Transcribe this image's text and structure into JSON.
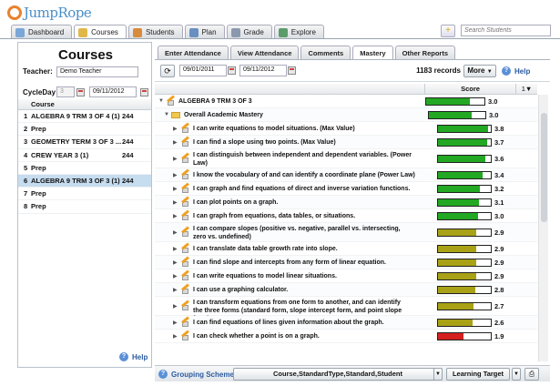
{
  "app": {
    "logo": "JumpRope"
  },
  "topnav": [
    {
      "label": "Dashboard",
      "color": "#7aa7d8"
    },
    {
      "label": "Courses",
      "color": "#e0b84a",
      "active": true
    },
    {
      "label": "Students",
      "color": "#d88b3c"
    },
    {
      "label": "Plan",
      "color": "#6a8fc0"
    },
    {
      "label": "Grade",
      "color": "#8a9aae"
    },
    {
      "label": "Explore",
      "color": "#5b9c6b"
    }
  ],
  "search": {
    "placeholder": "Search Students"
  },
  "left": {
    "title": "Courses",
    "teacher_label": "Teacher:",
    "teacher_value": "Demo Teacher",
    "cycleday_label": "CycleDay",
    "cycleday_value": "3",
    "date_value": "09/11/2012",
    "course_header": "Course",
    "courses": [
      {
        "num": "1",
        "name": "ALGEBRA 9 TRM 3 OF 4 (1)",
        "count": "244"
      },
      {
        "num": "2",
        "name": "Prep",
        "count": ""
      },
      {
        "num": "3",
        "name": "GEOMETRY TERM 3 OF 3 ...",
        "count": "244"
      },
      {
        "num": "4",
        "name": "CREW YEAR 3 (1)",
        "count": "244"
      },
      {
        "num": "5",
        "name": "Prep",
        "count": ""
      },
      {
        "num": "6",
        "name": "ALGEBRA 9 TRM 3 OF 3 (1)",
        "count": "244",
        "selected": true
      },
      {
        "num": "7",
        "name": "Prep",
        "count": ""
      },
      {
        "num": "8",
        "name": "Prep",
        "count": ""
      }
    ],
    "help_label": "Help"
  },
  "right": {
    "tabs": [
      "Enter Attendance",
      "View Attendance",
      "Comments",
      "Mastery",
      "Other Reports"
    ],
    "active_tab": "Mastery",
    "date_from": "09/01/2011",
    "date_to": "09/11/2012",
    "records": "1183 records",
    "more_label": "More",
    "help_label": "Help",
    "score_header": "Score",
    "sort_indicator": "1▼",
    "rows": [
      {
        "kind": "course",
        "text": "ALGEBRA 9 TRM 3 OF 3",
        "score": "3.0",
        "value": 3.0,
        "color": "#22a822"
      },
      {
        "kind": "group",
        "text": "Overall Academic Mastery",
        "score": "3.0",
        "value": 3.0,
        "color": "#22a822"
      },
      {
        "kind": "std",
        "text": "I can write equations to model situations. (Max Value)",
        "score": "3.8",
        "value": 3.8,
        "color": "#22a822"
      },
      {
        "kind": "std",
        "text": "I can find a slope using two points. (Max Value)",
        "score": "3.7",
        "value": 3.7,
        "color": "#22a822"
      },
      {
        "kind": "std2",
        "text": "I can distinguish between independent and dependent variables. (Power Law)",
        "score": "3.6",
        "value": 3.6,
        "color": "#22a822"
      },
      {
        "kind": "std",
        "text": "I know the vocabulary of and can identify a coordinate plane (Power Law)",
        "score": "3.4",
        "value": 3.4,
        "color": "#22a822"
      },
      {
        "kind": "std",
        "text": "I can graph and find equations of direct and inverse variation functions.",
        "score": "3.2",
        "value": 3.2,
        "color": "#22a822"
      },
      {
        "kind": "std",
        "text": "I can plot points on a graph.",
        "score": "3.1",
        "value": 3.1,
        "color": "#22a822"
      },
      {
        "kind": "std",
        "text": "I can graph from equations, data tables, or situations.",
        "score": "3.0",
        "value": 3.0,
        "color": "#22a822"
      },
      {
        "kind": "std2",
        "text": "I can compare slopes (positive vs.  negative, parallel vs.  intersecting, zero vs. undefined)",
        "score": "2.9",
        "value": 2.9,
        "color": "#a9a116"
      },
      {
        "kind": "std",
        "text": "I can translate data table growth rate into slope.",
        "score": "2.9",
        "value": 2.9,
        "color": "#a9a116"
      },
      {
        "kind": "std",
        "text": "I can find slope and intercepts from any form of linear equation.",
        "score": "2.9",
        "value": 2.9,
        "color": "#a9a116"
      },
      {
        "kind": "std",
        "text": "I can write equations to model linear situations.",
        "score": "2.9",
        "value": 2.9,
        "color": "#a9a116"
      },
      {
        "kind": "std",
        "text": "I can use a graphing calculator.",
        "score": "2.8",
        "value": 2.8,
        "color": "#a9a116"
      },
      {
        "kind": "std2",
        "text": "I can transform equations from one form to another, and can identify the three forms (standard form,  slope intercept form,  and point slope form).",
        "score": "2.7",
        "value": 2.7,
        "color": "#a9a116"
      },
      {
        "kind": "std",
        "text": "I can find equations of lines given information about the graph.",
        "score": "2.6",
        "value": 2.6,
        "color": "#a9a116"
      },
      {
        "kind": "std",
        "text": "I can check whether a point is on a graph.",
        "score": "1.9",
        "value": 1.9,
        "color": "#d42020"
      }
    ],
    "bottom": {
      "grouping_label": "Grouping Scheme:",
      "grouping_value": "Course,StandardType,Standard,Student",
      "target_label": "Learning Target"
    }
  }
}
